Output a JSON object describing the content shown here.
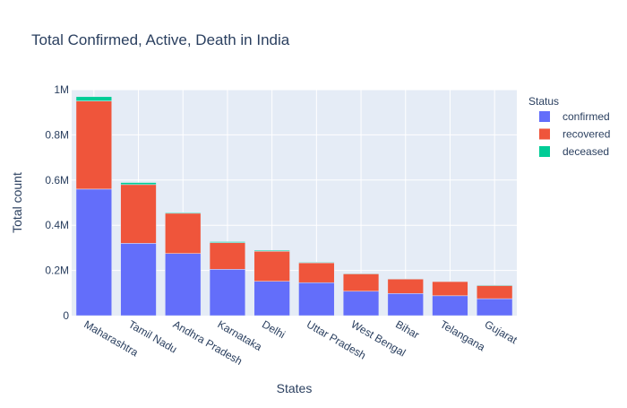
{
  "chart_data": {
    "type": "bar",
    "barmode": "stack",
    "title": "Total Confirmed, Active, Death in India",
    "xlabel": "States",
    "ylabel": "Total count",
    "categories": [
      "Maharashtra",
      "Tamil Nadu",
      "Andhra Pradesh",
      "Karnataka",
      "Delhi",
      "Uttar Pradesh",
      "West Bengal",
      "Bihar",
      "Telangana",
      "Gujarat"
    ],
    "series": [
      {
        "name": "confirmed",
        "color": "#636efa",
        "values": [
          560000,
          320000,
          275000,
          205000,
          152000,
          146000,
          108000,
          98000,
          88000,
          75000
        ]
      },
      {
        "name": "recovered",
        "color": "#ef553b",
        "values": [
          390000,
          260000,
          178000,
          118000,
          133000,
          88000,
          77000,
          64000,
          63000,
          58000
        ]
      },
      {
        "name": "deceased",
        "color": "#00cc96",
        "values": [
          19000,
          9000,
          3500,
          4400,
          4200,
          2700,
          2500,
          800,
          600,
          3000
        ]
      }
    ],
    "ylim": [
      0,
      1000000
    ],
    "yticks": [
      0,
      200000,
      400000,
      600000,
      800000,
      1000000
    ],
    "ytick_labels": [
      "0",
      "0.2M",
      "0.4M",
      "0.6M",
      "0.8M",
      "1M"
    ],
    "grid": true,
    "legend_title": "Status",
    "legend_position": "right"
  }
}
